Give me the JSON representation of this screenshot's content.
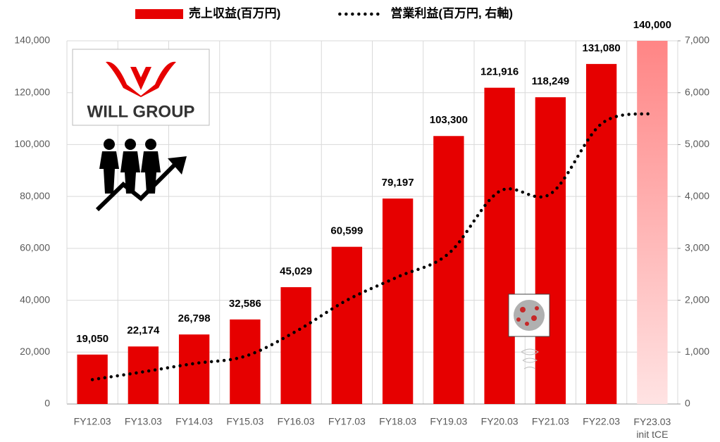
{
  "logo": {
    "text": "WILL GROUP"
  },
  "chart_data": {
    "type": "bar",
    "categories": [
      "FY12.03",
      "FY13.03",
      "FY14.03",
      "FY15.03",
      "FY16.03",
      "FY17.03",
      "FY18.03",
      "FY19.03",
      "FY20.03",
      "FY21.03",
      "FY22.03",
      "FY23.03\ninit tCE"
    ],
    "series": [
      {
        "name": "売上収益(百万円)",
        "type": "bar",
        "color": "#e60000",
        "colors": [
          "#e60000",
          "#e60000",
          "#e60000",
          "#e60000",
          "#e60000",
          "#e60000",
          "#e60000",
          "#e60000",
          "#e60000",
          "#e60000",
          "#e60000",
          "#ff8585"
        ],
        "values": [
          19050,
          22174,
          26798,
          32586,
          45029,
          60599,
          79197,
          103300,
          121916,
          118249,
          131080,
          140000
        ],
        "value_labels": [
          "19,050",
          "22,174",
          "26,798",
          "32,586",
          "45,029",
          "60,599",
          "79,197",
          "103,300",
          "121,916",
          "118,249",
          "131,080",
          "140,000"
        ]
      },
      {
        "name": "営業利益(百万円, 右軸)",
        "type": "line",
        "axis": "y2",
        "color": "#000000",
        "style": "dotted",
        "values": [
          470,
          620,
          780,
          920,
          1400,
          2000,
          2450,
          2900,
          4100,
          4050,
          5400,
          5600
        ]
      }
    ],
    "ylim": [
      0,
      140000
    ],
    "yticks": [
      0,
      {
        "value": 20000,
        "label": "20,000"
      },
      {
        "value": 40000,
        "label": "40,000"
      },
      {
        "value": 60000,
        "label": "60,000"
      },
      {
        "value": 80000,
        "label": "80,000"
      },
      {
        "value": 100000,
        "label": "100,000"
      },
      {
        "value": 120000,
        "label": "120,000"
      },
      {
        "value": 140000,
        "label": "140,000"
      }
    ],
    "y2lim": [
      0,
      7000
    ],
    "y2ticks": [
      0,
      {
        "value": 1000,
        "label": "1,000"
      },
      {
        "value": 2000,
        "label": "2,000"
      },
      {
        "value": 3000,
        "label": "3,000"
      },
      {
        "value": 4000,
        "label": "4,000"
      },
      {
        "value": 5000,
        "label": "5,000"
      },
      {
        "value": 6000,
        "label": "6,000"
      },
      {
        "value": 7000,
        "label": "7,000"
      }
    ],
    "grid": true,
    "legend": "top"
  }
}
